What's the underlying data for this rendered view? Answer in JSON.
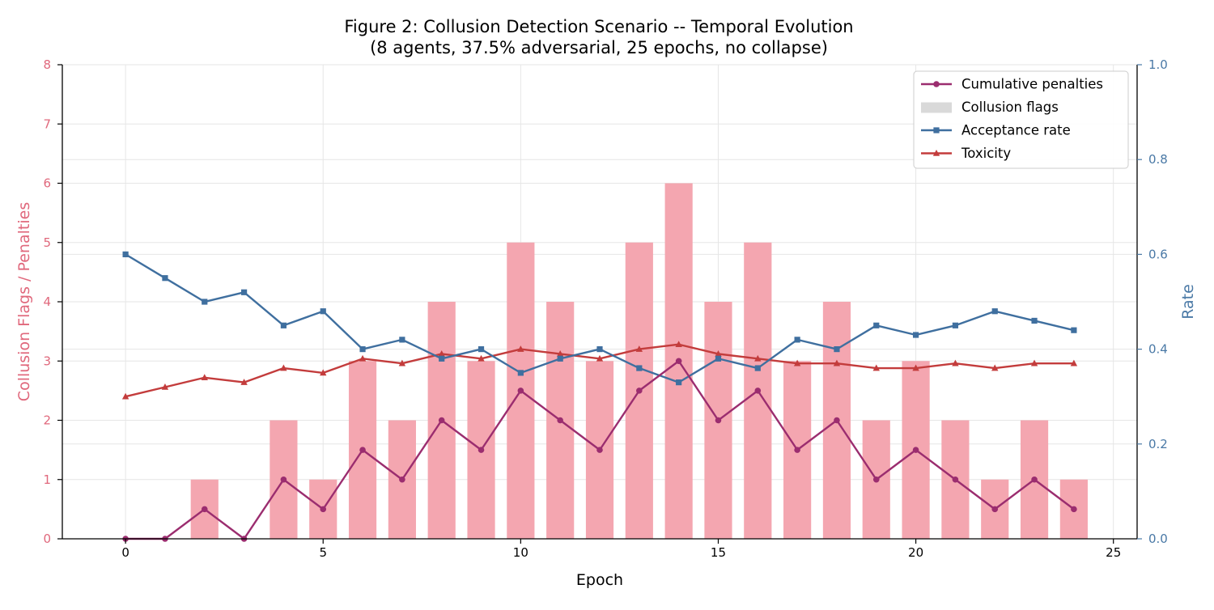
{
  "chart_data": {
    "type": "bar",
    "title_line1": "Figure 2: Collusion Detection Scenario -- Temporal Evolution",
    "title_line2": "(8 agents, 37.5% adversarial, 25 epochs, no collapse)",
    "xlabel": "Epoch",
    "ylabel_left": "Collusion Flags / Penalties",
    "ylabel_right": "Rate",
    "xlim": [
      -1.6,
      25.6
    ],
    "ylim_left": [
      0,
      8
    ],
    "ylim_right": [
      0.0,
      1.0
    ],
    "x_ticks": [
      0,
      5,
      10,
      15,
      20,
      25
    ],
    "y_left_ticks": [
      0,
      1,
      2,
      3,
      4,
      5,
      6,
      7,
      8
    ],
    "y_right_ticks": [
      0.0,
      0.2,
      0.4,
      0.6,
      0.8,
      1.0
    ],
    "epochs": [
      0,
      1,
      2,
      3,
      4,
      5,
      6,
      7,
      8,
      9,
      10,
      11,
      12,
      13,
      14,
      15,
      16,
      17,
      18,
      19,
      20,
      21,
      22,
      23,
      24
    ],
    "collusion_flags": [
      0,
      0,
      1,
      0,
      2,
      1,
      3,
      2,
      4,
      3,
      5,
      4,
      3,
      5,
      6,
      4,
      5,
      3,
      4,
      2,
      3,
      2,
      1,
      2,
      1
    ],
    "cumulative_penalties": [
      0,
      0,
      0.5,
      0,
      1,
      0.5,
      1.5,
      1,
      2,
      1.5,
      2.5,
      2,
      1.5,
      2.5,
      3,
      2,
      2.5,
      1.5,
      2,
      1,
      1.5,
      1,
      0.5,
      1,
      0.5
    ],
    "acceptance_rate": [
      0.6,
      0.55,
      0.5,
      0.52,
      0.45,
      0.48,
      0.4,
      0.42,
      0.38,
      0.4,
      0.35,
      0.38,
      0.4,
      0.36,
      0.33,
      0.38,
      0.36,
      0.42,
      0.4,
      0.45,
      0.43,
      0.45,
      0.48,
      0.46,
      0.44
    ],
    "toxicity": [
      0.3,
      0.32,
      0.34,
      0.33,
      0.36,
      0.35,
      0.38,
      0.37,
      0.39,
      0.38,
      0.4,
      0.39,
      0.38,
      0.4,
      0.41,
      0.39,
      0.38,
      0.37,
      0.37,
      0.36,
      0.36,
      0.37,
      0.36,
      0.37,
      0.37
    ],
    "legend": {
      "position": "top-right",
      "entries": [
        "Cumulative penalties",
        "Collusion flags",
        "Acceptance rate",
        "Toxicity"
      ]
    },
    "colors": {
      "bars": "#f4a6b0",
      "penalties": "#9b2d6f",
      "acceptance": "#3f6f9f",
      "toxicity": "#c33c3c",
      "left_axis": "#e0687c",
      "right_axis": "#4a79a6",
      "legend_bar_swatch": "#d9d9d9"
    },
    "grid": true
  }
}
